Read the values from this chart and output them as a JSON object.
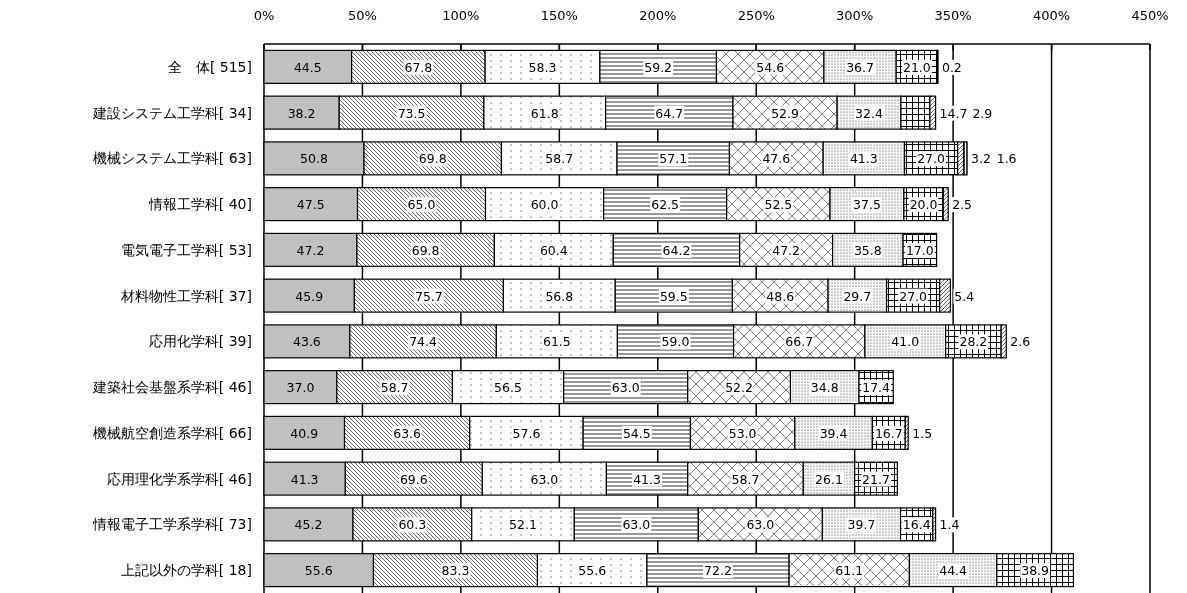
{
  "chart_data": {
    "type": "bar",
    "orientation": "horizontal",
    "stacked": true,
    "grid": "x",
    "categories": [
      "全　体[ 515]",
      "建設システム工学科[  34]",
      "機械システム工学科[  63]",
      "情報工学科[  40]",
      "電気電子工学科[  53]",
      "材料物性工学科[  37]",
      "応用化学科[  39]",
      "建築社会基盤系学科[  46]",
      "機械航空創造系学科[  66]",
      "応用理化学系学科[  46]",
      "情報電子工学系学科[  73]",
      "上記以外の学科[  18]"
    ],
    "xlim": [
      0,
      450
    ],
    "xticks": [
      {
        "value": 0,
        "label": "0%"
      },
      {
        "value": 50,
        "label": "50%"
      },
      {
        "value": 100,
        "label": "100%"
      },
      {
        "value": 150,
        "label": "150%"
      },
      {
        "value": 200,
        "label": "200%"
      },
      {
        "value": 250,
        "label": "250%"
      },
      {
        "value": 300,
        "label": "300%"
      },
      {
        "value": 350,
        "label": "350%"
      },
      {
        "value": 400,
        "label": "400%"
      },
      {
        "value": 450,
        "label": "450%"
      }
    ],
    "series": [
      {
        "color": "#c0c0c0",
        "values": [
          44.5,
          38.2,
          50.8,
          47.5,
          47.2,
          45.9,
          43.6,
          37.0,
          40.9,
          41.3,
          45.2,
          55.6
        ],
        "value_labels": [
          "44.5",
          "38.2",
          "50.8",
          "47.5",
          "47.2",
          "45.9",
          "43.6",
          "37.0",
          "40.9",
          "41.3",
          "45.2",
          "55.6"
        ]
      },
      {
        "color": "#000000",
        "values": [
          67.8,
          73.5,
          69.8,
          65.0,
          69.8,
          75.7,
          74.4,
          58.7,
          63.6,
          69.6,
          60.3,
          83.3
        ],
        "value_labels": [
          "67.8",
          "73.5",
          "69.8",
          "65.0",
          "69.8",
          "75.7",
          "74.4",
          "58.7",
          "63.6",
          "69.6",
          "60.3",
          "83.3"
        ]
      },
      {
        "color": "#000000",
        "values": [
          58.3,
          61.8,
          58.7,
          60.0,
          60.4,
          56.8,
          61.5,
          56.5,
          57.6,
          63.0,
          52.1,
          55.6
        ],
        "value_labels": [
          "58.3",
          "61.8",
          "58.7",
          "60.0",
          "60.4",
          "56.8",
          "61.5",
          "56.5",
          "57.6",
          "63.0",
          "52.1",
          "55.6"
        ]
      },
      {
        "color": "#000000",
        "values": [
          59.2,
          64.7,
          57.1,
          62.5,
          64.2,
          59.5,
          59.0,
          63.0,
          54.5,
          41.3,
          63.0,
          72.2
        ],
        "value_labels": [
          "59.2",
          "64.7",
          "57.1",
          "62.5",
          "64.2",
          "59.5",
          "59.0",
          "63.0",
          "54.5",
          "41.3",
          "63.0",
          "72.2"
        ]
      },
      {
        "color": "#000000",
        "values": [
          54.6,
          52.9,
          47.6,
          52.5,
          47.2,
          48.6,
          66.7,
          52.2,
          53.0,
          58.7,
          63.0,
          61.1
        ],
        "value_labels": [
          "54.6",
          "52.9",
          "47.6",
          "52.5",
          "47.2",
          "48.6",
          "66.7",
          "52.2",
          "53.0",
          "58.7",
          "63.0",
          "61.1"
        ]
      },
      {
        "color": "#000000",
        "values": [
          36.7,
          32.4,
          41.3,
          37.5,
          35.8,
          29.7,
          41.0,
          34.8,
          39.4,
          26.1,
          39.7,
          44.4
        ],
        "value_labels": [
          "36.7",
          "32.4",
          "41.3",
          "37.5",
          "35.8",
          "29.7",
          "41.0",
          "34.8",
          "39.4",
          "26.1",
          "39.7",
          "44.4"
        ]
      },
      {
        "color": "#000000",
        "values": [
          21.0,
          14.7,
          27.0,
          20.0,
          17.0,
          27.0,
          28.2,
          17.4,
          16.7,
          21.7,
          16.4,
          38.9
        ],
        "value_labels": [
          "21.0",
          "14.7",
          "27.0",
          "20.0",
          "17.0",
          "27.0",
          "28.2",
          "17.4",
          "16.7",
          "21.7",
          "16.4",
          "38.9"
        ]
      },
      {
        "color": "#000000",
        "values": [
          0.2,
          2.9,
          3.2,
          2.5,
          null,
          5.4,
          2.6,
          null,
          1.5,
          null,
          1.4,
          null
        ],
        "value_labels": [
          "0.2",
          "2.9",
          "3.2",
          "2.5",
          null,
          "5.4",
          "2.6",
          null,
          "1.5",
          null,
          "1.4",
          null
        ]
      },
      {
        "color": "#000000",
        "values": [
          null,
          null,
          1.6,
          null,
          null,
          null,
          null,
          null,
          null,
          null,
          null,
          null
        ],
        "value_labels": [
          null,
          null,
          "1.6",
          null,
          null,
          null,
          null,
          null,
          null,
          null,
          null,
          null
        ]
      }
    ]
  }
}
